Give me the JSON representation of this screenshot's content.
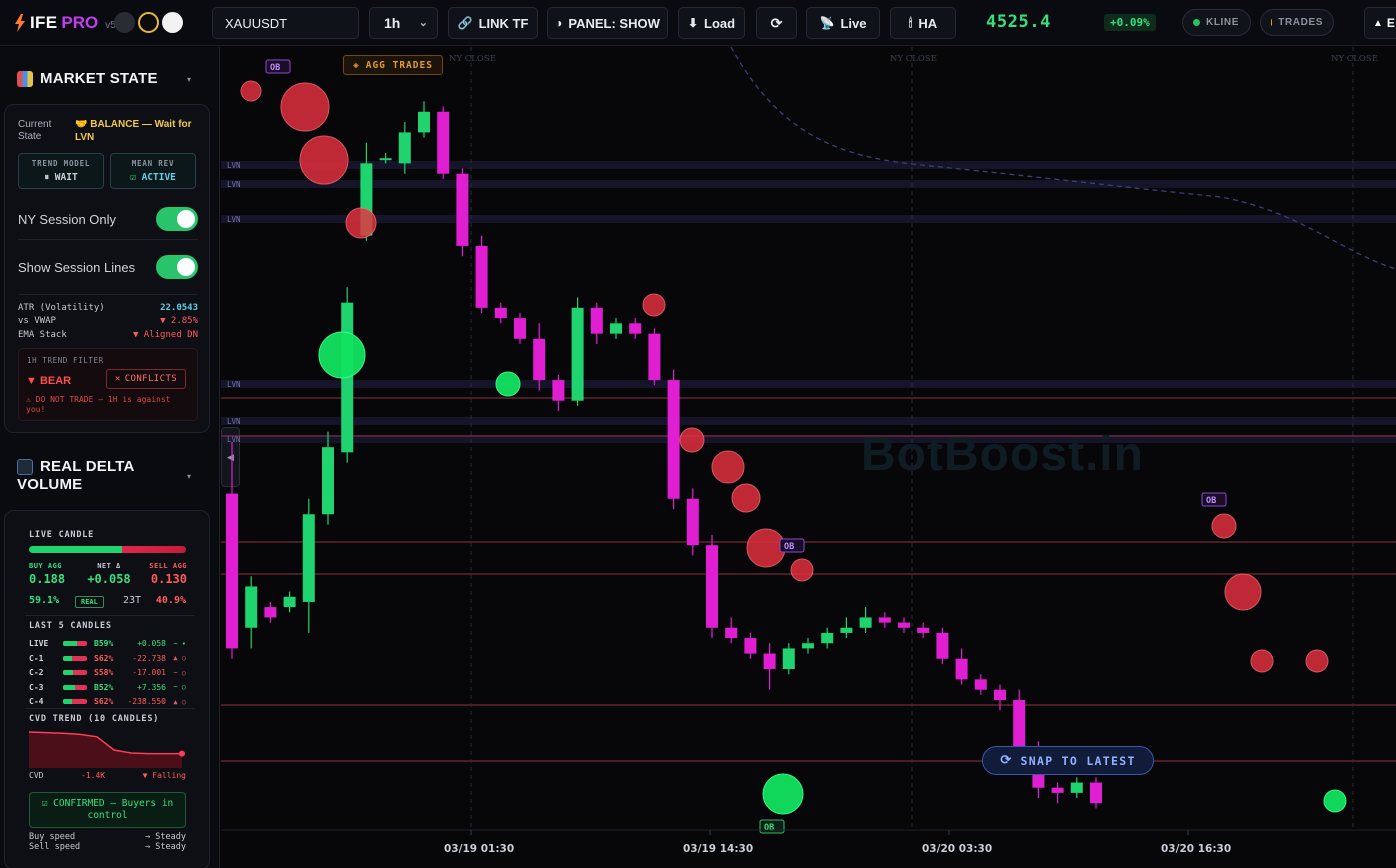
{
  "brand": {
    "name_a": "IFE",
    "name_b": "PRO",
    "version": "v50"
  },
  "toolbar": {
    "symbol_value": "XAUUSDT",
    "timeframe": "1h",
    "link_tf": "LINK TF",
    "panel": "PANEL: SHOW",
    "load": "Load",
    "live": "Live",
    "ha": "HA",
    "last_partial": "E",
    "last_price": "4525.4",
    "change": "+0.09%",
    "pill_kline": "KLINE",
    "pill_trades": "TRADES"
  },
  "market_state": {
    "title": "MARKET STATE",
    "current_state_label": "Current State",
    "current_state_value": "BALANCE — Wait for LVN",
    "trend_model_label": "TRENDMODEL",
    "trend_model_value": "WAIT",
    "mean_rev_label": "MEAN REV",
    "mean_rev_value": "ACTIVE",
    "ny_session_label": "NY Session Only",
    "ny_session_on": true,
    "session_lines_label": "Show Session Lines",
    "session_lines_on": true,
    "atr_label": "ATR (Volatility)",
    "atr_value": "22.0543",
    "vwap_label": "vs VWAP",
    "vwap_value": "▼ 2.85%",
    "ema_label": "EMA Stack",
    "ema_value": "▼ Aligned DN",
    "filter_title": "1H TREND FILTER",
    "filter_bias": "▼ BEAR",
    "filter_conflict": "CONFLICTS",
    "filter_warning": "⚠ DO NOT TRADE — 1H is against you!"
  },
  "delta": {
    "title_line1": "REAL DELTA",
    "title_line2": "VOLUME",
    "live_candle_label": "LIVE CANDLE",
    "buy_fraction": 0.591,
    "buy_agg_label": "BUY AGG",
    "buy_agg": "0.188",
    "net_label": "NET Δ",
    "net": "+0.058",
    "sell_agg_label": "SELL AGG",
    "sell_agg": "0.130",
    "buy_pct": "59.1%",
    "real_badge": "REAL",
    "trades": "23T",
    "sell_pct": "40.9%",
    "last5_label": "LAST 5 CANDLES",
    "candles": [
      {
        "name": "LIVE",
        "pct": "B59%",
        "buy": 0.59,
        "delta": "+0.058",
        "arrow": "~ •",
        "side": "buy"
      },
      {
        "name": "C-1",
        "pct": "S62%",
        "buy": 0.38,
        "delta": "-22.738",
        "arrow": "▲ ○",
        "side": "sell"
      },
      {
        "name": "C-2",
        "pct": "S58%",
        "buy": 0.42,
        "delta": "-17.001",
        "arrow": "~ ○",
        "side": "sell"
      },
      {
        "name": "C-3",
        "pct": "B52%",
        "buy": 0.52,
        "delta": "+7.356",
        "arrow": "~ ○",
        "side": "buy"
      },
      {
        "name": "C-4",
        "pct": "S62%",
        "buy": 0.38,
        "delta": "-238.550",
        "arrow": "▲ ○",
        "side": "sell"
      }
    ],
    "cvd_trend_label": "CVD TREND (10 CANDLES)",
    "cvd_label": "CVD",
    "cvd_value": "-1.4K",
    "cvd_state": "▼ Falling",
    "cvd_series": [
      5.0,
      4.9,
      4.8,
      4.6,
      4.2,
      2.0,
      1.5,
      1.4,
      1.4,
      1.4
    ],
    "confirm": "CONFIRMED — Buyers in control",
    "buy_speed_label": "Buy speed",
    "buy_speed": "→ Steady",
    "sell_speed_label": "Sell speed",
    "sell_speed": "→ Steady"
  },
  "chart_overlay": {
    "agg_trades": "AGG TRADES",
    "watermark": "BotBoost.in",
    "snap": "SNAP TO LATEST",
    "session_label": "NY CLOSE",
    "lvn_label": "LVN",
    "ob_label": "OB"
  },
  "chart_data": {
    "type": "candlestick",
    "symbol": "XAUUSDT",
    "interval": "1h",
    "x_ticks": [
      "03/19 01:30",
      "03/19 14:30",
      "03/20 03:30",
      "03/20 16:30"
    ],
    "colors": {
      "bull": "#1fd36f",
      "bear": "#e01fd2",
      "buy_bubble": "#11e35f",
      "sell_bubble": "#e8303f"
    },
    "candles": [
      [
        5,
        0.6,
        0.3,
        0.7,
        0.28
      ],
      [
        6,
        0.34,
        0.42,
        0.44,
        0.3
      ],
      [
        7,
        0.38,
        0.36,
        0.39,
        0.35
      ],
      [
        8,
        0.38,
        0.4,
        0.41,
        0.37
      ],
      [
        9,
        0.39,
        0.56,
        0.59,
        0.33
      ],
      [
        10,
        0.56,
        0.69,
        0.72,
        0.54
      ],
      [
        11,
        0.68,
        0.97,
        1.0,
        0.66
      ],
      [
        12,
        1.1,
        1.24,
        1.28,
        1.09
      ],
      [
        13,
        1.25,
        1.25,
        1.26,
        1.24
      ],
      [
        14,
        1.24,
        1.3,
        1.32,
        1.22
      ],
      [
        15,
        1.3,
        1.34,
        1.36,
        1.29
      ],
      [
        16,
        1.34,
        1.22,
        1.35,
        1.21
      ],
      [
        17,
        1.22,
        1.08,
        1.23,
        1.06
      ],
      [
        18,
        1.08,
        0.96,
        1.1,
        0.95
      ],
      [
        19,
        0.96,
        0.94,
        0.97,
        0.93
      ],
      [
        20,
        0.94,
        0.9,
        0.95,
        0.89
      ],
      [
        21,
        0.9,
        0.82,
        0.93,
        0.8
      ],
      [
        22,
        0.82,
        0.78,
        0.83,
        0.76
      ],
      [
        23,
        0.78,
        0.96,
        0.98,
        0.77
      ],
      [
        24,
        0.96,
        0.91,
        0.97,
        0.89
      ],
      [
        25,
        0.91,
        0.93,
        0.94,
        0.9
      ],
      [
        26,
        0.93,
        0.91,
        0.94,
        0.9
      ],
      [
        27,
        0.91,
        0.82,
        0.92,
        0.81
      ],
      [
        28,
        0.82,
        0.59,
        0.84,
        0.57
      ],
      [
        29,
        0.59,
        0.5,
        0.61,
        0.48
      ],
      [
        30,
        0.5,
        0.34,
        0.52,
        0.32
      ],
      [
        31,
        0.34,
        0.32,
        0.36,
        0.31
      ],
      [
        32,
        0.32,
        0.29,
        0.33,
        0.28
      ],
      [
        33,
        0.29,
        0.26,
        0.31,
        0.22
      ],
      [
        34,
        0.26,
        0.3,
        0.31,
        0.25
      ],
      [
        35,
        0.3,
        0.31,
        0.32,
        0.29
      ],
      [
        36,
        0.31,
        0.33,
        0.34,
        0.3
      ],
      [
        37,
        0.33,
        0.34,
        0.36,
        0.32
      ],
      [
        38,
        0.34,
        0.36,
        0.38,
        0.33
      ],
      [
        39,
        0.36,
        0.35,
        0.37,
        0.34
      ],
      [
        40,
        0.35,
        0.34,
        0.36,
        0.33
      ],
      [
        41,
        0.34,
        0.33,
        0.35,
        0.32
      ],
      [
        42,
        0.33,
        0.28,
        0.34,
        0.27
      ],
      [
        43,
        0.28,
        0.24,
        0.3,
        0.23
      ],
      [
        44,
        0.24,
        0.22,
        0.25,
        0.21
      ],
      [
        45,
        0.22,
        0.2,
        0.23,
        0.18
      ],
      [
        46,
        0.2,
        0.1,
        0.22,
        0.08
      ],
      [
        47,
        0.1,
        0.03,
        0.12,
        0.01
      ],
      [
        48,
        0.03,
        0.02,
        0.04,
        0.0
      ],
      [
        49,
        0.02,
        0.04,
        0.05,
        0.01
      ],
      [
        50,
        0.04,
        0.0,
        0.05,
        -0.01
      ]
    ],
    "y_range": [
      -0.05,
      1.45
    ]
  }
}
